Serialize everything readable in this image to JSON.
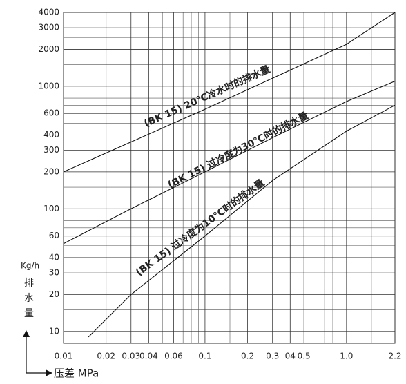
{
  "chart_data": {
    "type": "line",
    "x_scale": "log",
    "y_scale": "log",
    "grid": true,
    "xlim": [
      0.01,
      2.2
    ],
    "ylim": [
      8,
      4000
    ],
    "xticks": [
      0.01,
      0.02,
      0.03,
      0.04,
      0.06,
      0.1,
      0.2,
      0.3,
      {
        "value": 0.4,
        "label": "04"
      },
      0.5,
      {
        "value": 1,
        "label": "1.0"
      },
      2.2
    ],
    "yticks": [
      10,
      20,
      30,
      40,
      60,
      100,
      200,
      300,
      400,
      600,
      1000,
      2000,
      3000,
      4000
    ],
    "x_minor_ticks": [
      0.05,
      0.07,
      0.08,
      0.09,
      0.15,
      0.7,
      0.8,
      0.9,
      1.5,
      2
    ],
    "y_minor_ticks": [
      15,
      50,
      70,
      80,
      150,
      500,
      700,
      800,
      1500,
      2500
    ],
    "y_label": "Kg/h",
    "y_label_2": "排",
    "y_label_3": "水",
    "y_label_4": "量",
    "x_label": "压差 MPa",
    "series": [
      {
        "name": "(BK 15) 20℃冷水时的排水量",
        "color": "#111111",
        "x": [
          0.01,
          0.1,
          1,
          2.2
        ],
        "values": [
          200,
          650,
          2200,
          4000
        ]
      },
      {
        "name": "(BK 15) 过冷度为30℃时的排水量",
        "color": "#111111",
        "x": [
          0.01,
          0.03,
          0.1,
          0.3,
          1,
          2.2
        ],
        "values": [
          52,
          100,
          200,
          380,
          750,
          1100
        ]
      },
      {
        "name": "(BK 15) 过冷度为10℃时的排水量",
        "color": "#111111",
        "x": [
          0.015,
          0.03,
          0.1,
          0.3,
          1,
          2.2
        ],
        "values": [
          9,
          20,
          60,
          170,
          430,
          700
        ]
      }
    ]
  }
}
